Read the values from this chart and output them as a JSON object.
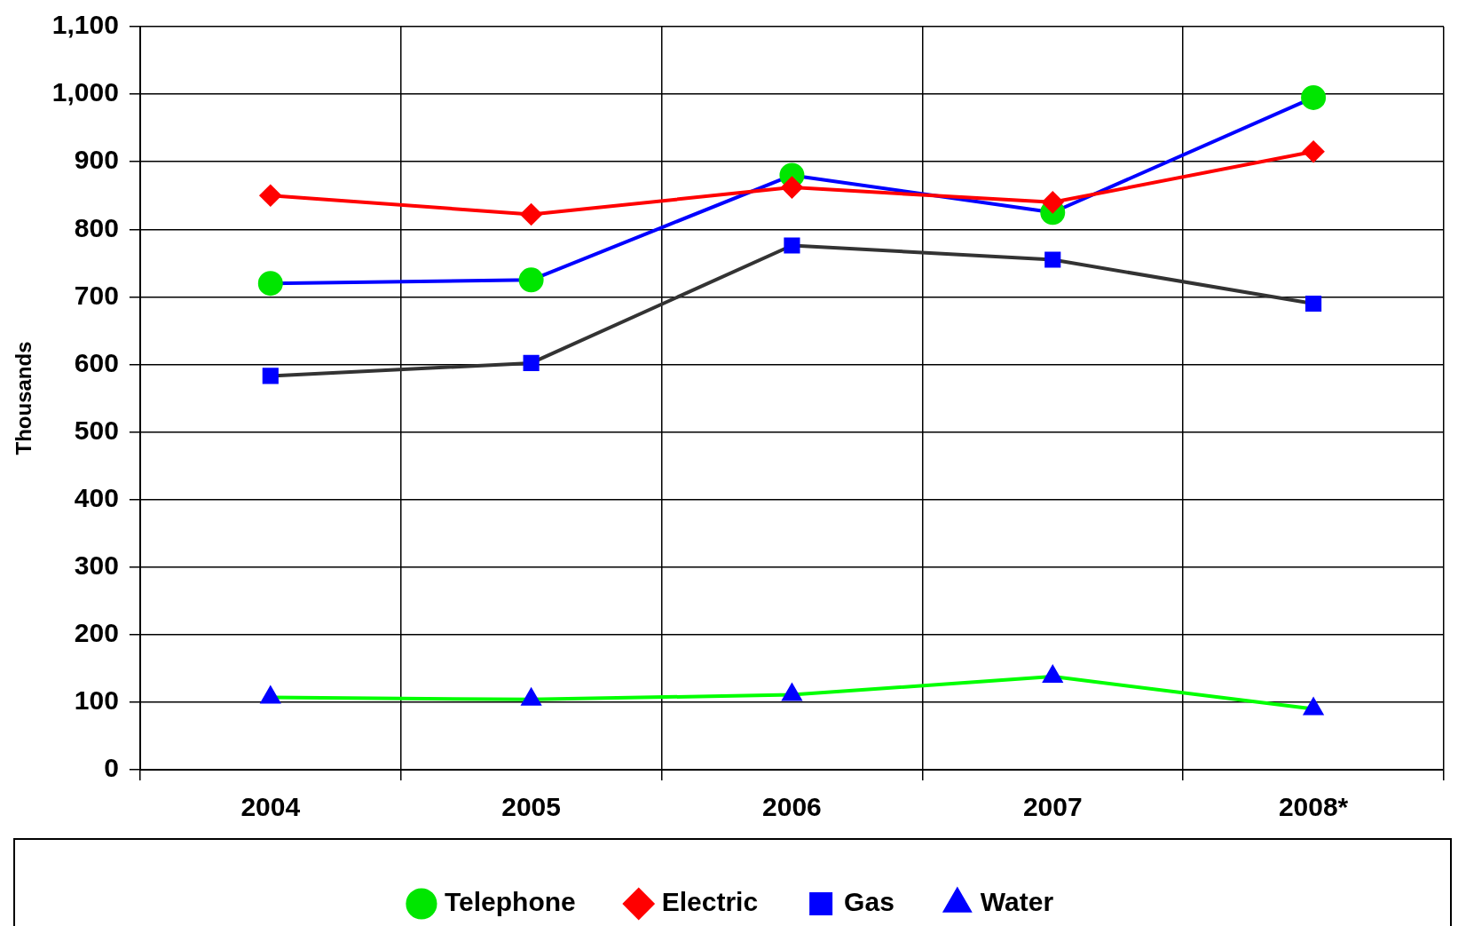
{
  "chart_data": {
    "type": "line",
    "ylabel": "Thousands",
    "categories": [
      "2004",
      "2005",
      "2006",
      "2007",
      "2008*"
    ],
    "series": [
      {
        "name": "Telephone",
        "color": "#0000ff",
        "colors": [
          "#00e600",
          "#00e600",
          "#00e600",
          "#00e600",
          "#00e600"
        ],
        "marker": "circle",
        "values": [
          720,
          725,
          880,
          825,
          995
        ]
      },
      {
        "name": "Electric",
        "color": "#ff0000",
        "colors": [
          "#ff0000",
          "#ff0000",
          "#ff0000",
          "#ff0000",
          "#ff0000"
        ],
        "marker": "diamond",
        "values": [
          850,
          822,
          862,
          840,
          915
        ]
      },
      {
        "name": "Gas",
        "color": "#333333",
        "colors": [
          "#0000ff",
          "#0000ff",
          "#0000ff",
          "#0000ff",
          "#0000ff"
        ],
        "marker": "square",
        "values": [
          583,
          602,
          776,
          755,
          690
        ]
      },
      {
        "name": "Water",
        "color": "#00ff00",
        "colors": [
          "#0000ff",
          "#0000ff",
          "#0000ff",
          "#0000ff",
          "#0000ff"
        ],
        "marker": "triangle",
        "values": [
          107,
          104,
          111,
          138,
          90
        ]
      }
    ],
    "ylim": [
      0,
      1100
    ],
    "yticks": [
      0,
      100,
      200,
      300,
      400,
      500,
      600,
      700,
      800,
      900,
      {
        "value": 1000,
        "label": "1,000"
      },
      {
        "value": 1100,
        "label": "1,100"
      }
    ],
    "grid": true,
    "legend": "bottom"
  }
}
